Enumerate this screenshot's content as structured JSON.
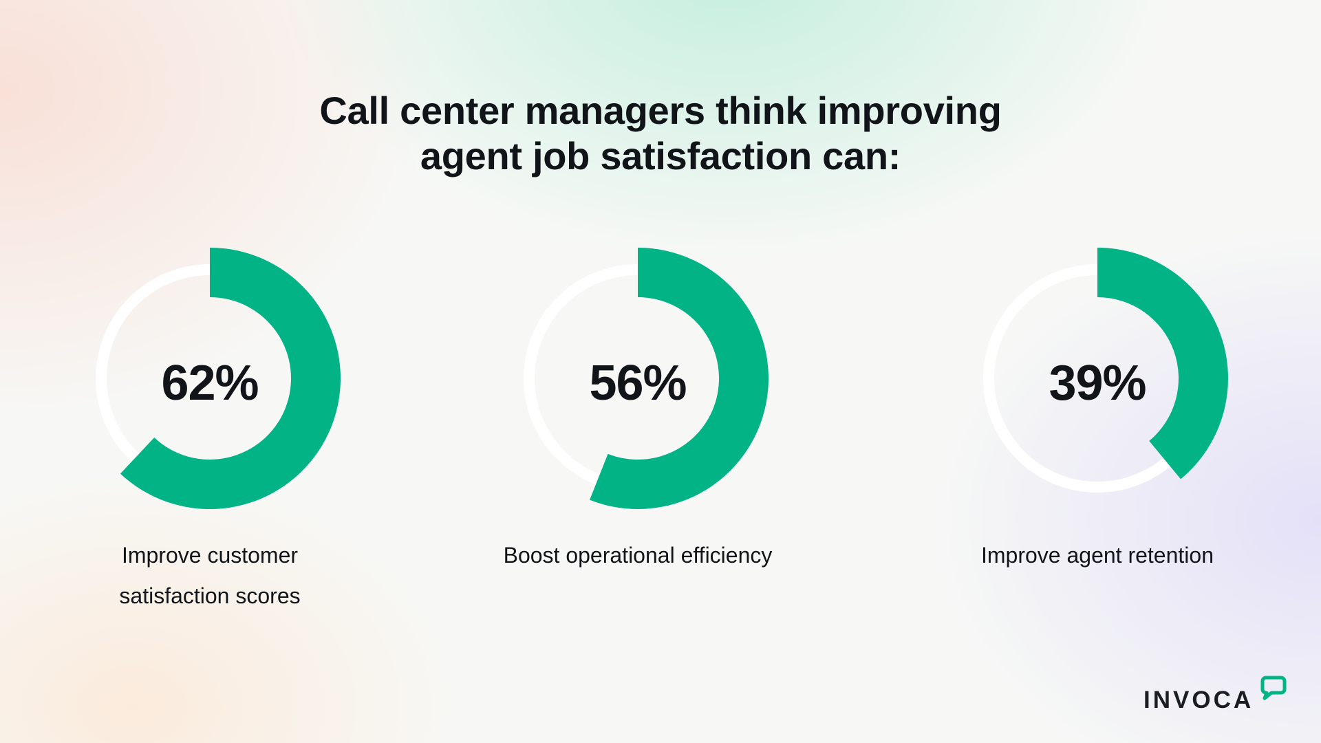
{
  "title": {
    "line1": "Call center managers think improving",
    "line2": "agent job satisfaction can:"
  },
  "colors": {
    "accent": "#02b386",
    "track": "#ffffff",
    "text": "#111418"
  },
  "chart_data": [
    {
      "type": "pie",
      "style": "donut",
      "value": 62,
      "max": 100,
      "value_label": "62%",
      "caption": "Improve customer satisfaction scores"
    },
    {
      "type": "pie",
      "style": "donut",
      "value": 56,
      "max": 100,
      "value_label": "56%",
      "caption": "Boost operational efficiency"
    },
    {
      "type": "pie",
      "style": "donut",
      "value": 39,
      "max": 100,
      "value_label": "39%",
      "caption": "Improve agent retention"
    }
  ],
  "brand": {
    "name": "INVOCA",
    "icon": "speech-bubble-icon"
  }
}
